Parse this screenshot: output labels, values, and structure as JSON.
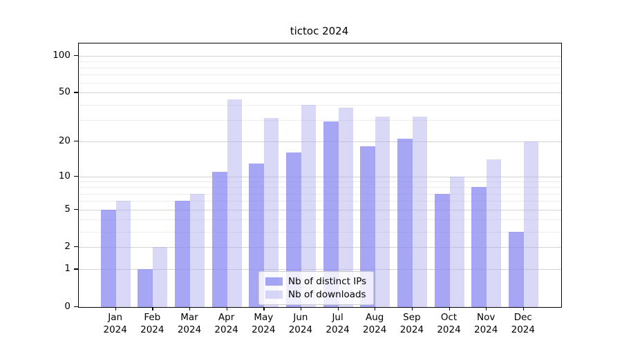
{
  "chart_data": {
    "type": "bar",
    "title": "tictoc 2024",
    "scale": "log1p",
    "year": "2024",
    "months": [
      "Jan",
      "Feb",
      "Mar",
      "Apr",
      "May",
      "Jun",
      "Jul",
      "Aug",
      "Sep",
      "Oct",
      "Nov",
      "Dec"
    ],
    "series": [
      {
        "key": "ips",
        "name": "Nb of distinct IPs",
        "color": "rgba(136,136,241,0.75)",
        "values": [
          5,
          1,
          6,
          11,
          13,
          16,
          29,
          18,
          21,
          7,
          8,
          3
        ]
      },
      {
        "key": "downloads",
        "name": "Nb of downloads",
        "color": "rgba(171,171,237,0.45)",
        "values": [
          6,
          2,
          7,
          44,
          31,
          40,
          38,
          32,
          32,
          10,
          14,
          20
        ]
      }
    ],
    "y_major_ticks": [
      0,
      1,
      2,
      5,
      10,
      20,
      50,
      100
    ],
    "y_minor_ticks": [
      3,
      4,
      6,
      7,
      8,
      9,
      30,
      40,
      60,
      70,
      80,
      90
    ],
    "ylim": [
      0,
      125
    ],
    "grid": true,
    "legend_position": "lower-center"
  },
  "colors": {
    "bar_ips": "rgba(136,136,241,0.75)",
    "bar_downloads": "rgba(171,171,237,0.45)",
    "grid_major": "#d3d3d3",
    "grid_minor": "#ececec",
    "axis": "#000000",
    "text": "#000000",
    "legend_border": "#cccccc",
    "legend_bg": "rgba(255,255,255,0.8)"
  }
}
